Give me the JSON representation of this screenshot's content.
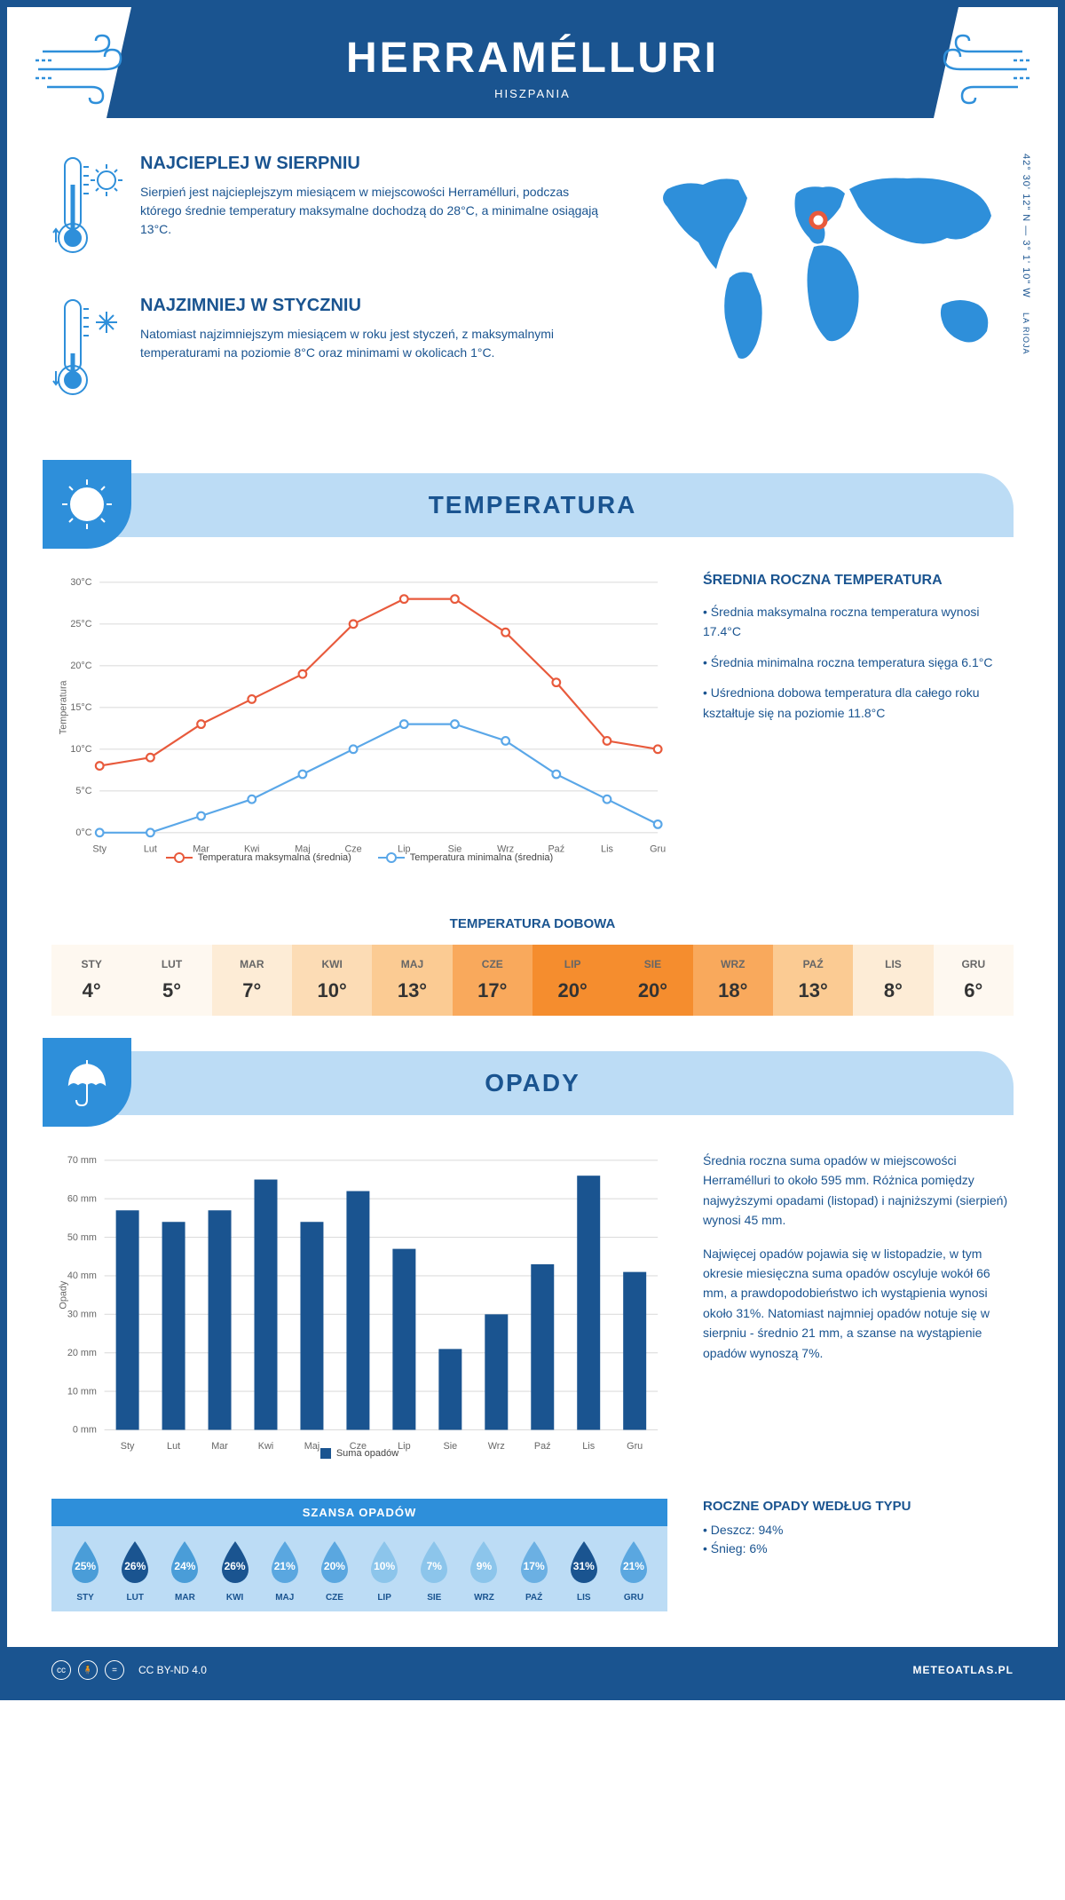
{
  "header": {
    "title": "HERRAMÉLLURI",
    "subtitle": "HISZPANIA"
  },
  "coords": "42° 30' 12\" N — 3° 1' 10\" W",
  "region": "LA RIOJA",
  "intro": {
    "hot": {
      "title": "NAJCIEPLEJ W SIERPNIU",
      "text": "Sierpień jest najcieplejszym miesiącem w miejscowości Herramélluri, podczas którego średnie temperatury maksymalne dochodzą do 28°C, a minimalne osiągają 13°C."
    },
    "cold": {
      "title": "NAJZIMNIEJ W STYCZNIU",
      "text": "Natomiast najzimniejszym miesiącem w roku jest styczeń, z maksymalnymi temperaturami na poziomie 8°C oraz minimami w okolicach 1°C."
    }
  },
  "temp_section": {
    "title": "TEMPERATURA",
    "info_title": "ŚREDNIA ROCZNA TEMPERATURA",
    "bullets": [
      "• Średnia maksymalna roczna temperatura wynosi 17.4°C",
      "• Średnia minimalna roczna temperatura sięga 6.1°C",
      "• Uśredniona dobowa temperatura dla całego roku kształtuje się na poziomie 11.8°C"
    ],
    "chart": {
      "ylabel": "Temperatura",
      "months": [
        "Sty",
        "Lut",
        "Mar",
        "Kwi",
        "Maj",
        "Cze",
        "Lip",
        "Sie",
        "Wrz",
        "Paź",
        "Lis",
        "Gru"
      ],
      "max": [
        8,
        9,
        13,
        16,
        19,
        25,
        28,
        28,
        24,
        18,
        11,
        10
      ],
      "min": [
        0,
        0,
        2,
        4,
        7,
        10,
        13,
        13,
        11,
        7,
        4,
        1
      ],
      "ylim": [
        0,
        30
      ],
      "ytick": 5,
      "max_color": "#e85a3c",
      "min_color": "#5aa7e8",
      "grid_color": "#e0e0e0",
      "legend_max": "Temperatura maksymalna (średnia)",
      "legend_min": "Temperatura minimalna (średnia)"
    },
    "daily": {
      "title": "TEMPERATURA DOBOWA",
      "months": [
        "STY",
        "LUT",
        "MAR",
        "KWI",
        "MAJ",
        "CZE",
        "LIP",
        "SIE",
        "WRZ",
        "PAŹ",
        "LIS",
        "GRU"
      ],
      "values": [
        "4°",
        "5°",
        "7°",
        "10°",
        "13°",
        "17°",
        "20°",
        "20°",
        "18°",
        "13°",
        "8°",
        "6°"
      ],
      "colors": [
        "#fef8f0",
        "#fef8f0",
        "#fdecd6",
        "#fcdcb5",
        "#fbcb93",
        "#f9a95c",
        "#f58d2e",
        "#f58d2e",
        "#f9a95c",
        "#fbcb93",
        "#fdecd6",
        "#fef8f0"
      ]
    }
  },
  "precip_section": {
    "title": "OPADY",
    "text1": "Średnia roczna suma opadów w miejscowości Herramélluri to około 595 mm. Różnica pomiędzy najwyższymi opadami (listopad) i najniższymi (sierpień) wynosi 45 mm.",
    "text2": "Najwięcej opadów pojawia się w listopadzie, w tym okresie miesięczna suma opadów oscyluje wokół 66 mm, a prawdopodobieństwo ich wystąpienia wynosi około 31%. Natomiast najmniej opadów notuje się w sierpniu - średnio 21 mm, a szanse na wystąpienie opadów wynoszą 7%.",
    "chart": {
      "ylabel": "Opady",
      "months": [
        "Sty",
        "Lut",
        "Mar",
        "Kwi",
        "Maj",
        "Cze",
        "Lip",
        "Sie",
        "Wrz",
        "Paź",
        "Lis",
        "Gru"
      ],
      "values": [
        57,
        54,
        57,
        65,
        54,
        62,
        47,
        21,
        30,
        43,
        66,
        41
      ],
      "ylim": [
        0,
        70
      ],
      "ytick": 10,
      "bar_color": "#1a5490",
      "legend": "Suma opadów"
    },
    "chance": {
      "title": "SZANSA OPADÓW",
      "months": [
        "STY",
        "LUT",
        "MAR",
        "KWI",
        "MAJ",
        "CZE",
        "LIP",
        "SIE",
        "WRZ",
        "PAŹ",
        "LIS",
        "GRU"
      ],
      "values": [
        "25%",
        "26%",
        "24%",
        "26%",
        "21%",
        "20%",
        "10%",
        "7%",
        "9%",
        "17%",
        "31%",
        "21%"
      ],
      "colors": [
        "#4a9dd8",
        "#1a5490",
        "#4a9dd8",
        "#1a5490",
        "#5aa7e0",
        "#5aa7e0",
        "#8cc5eb",
        "#8cc5eb",
        "#8cc5eb",
        "#6bb0e3",
        "#1a5490",
        "#5aa7e0"
      ]
    },
    "type": {
      "title": "ROCZNE OPADY WEDŁUG TYPU",
      "rain": "• Deszcz: 94%",
      "snow": "• Śnieg: 6%"
    }
  },
  "footer": {
    "license": "CC BY-ND 4.0",
    "site": "METEOATLAS.PL"
  }
}
